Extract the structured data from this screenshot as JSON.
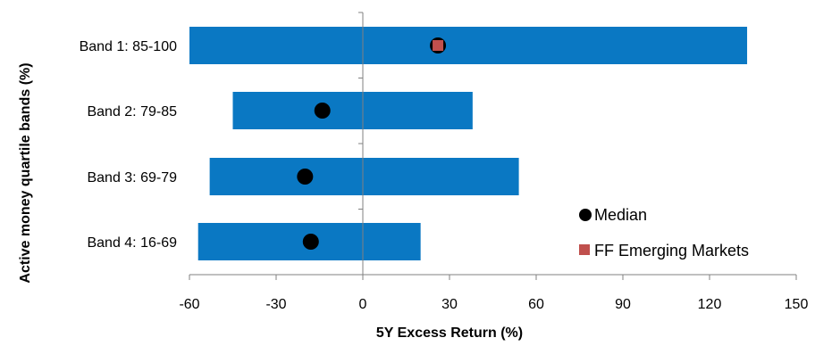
{
  "chart_data": {
    "type": "bar",
    "orientation": "horizontal",
    "subtype": "floating-range",
    "categories": [
      "Band 1: 85-100",
      "Band 2: 79-85",
      "Band 3: 69-79",
      "Band 4: 16-69"
    ],
    "ranges": [
      [
        -60,
        133
      ],
      [
        -45,
        38
      ],
      [
        -53,
        54
      ],
      [
        -57,
        20
      ]
    ],
    "series": [
      {
        "name": "Median",
        "marker": "circle",
        "values": [
          26,
          -14,
          -20,
          -18
        ]
      },
      {
        "name": "FF Emerging Markets",
        "marker": "square",
        "values": [
          26,
          null,
          null,
          null
        ]
      }
    ],
    "xlabel": "5Y Excess Return (%)",
    "ylabel": "Active money quartile bands (%)",
    "xlim": [
      -60,
      150
    ],
    "xticks": [
      -60,
      -30,
      0,
      30,
      60,
      90,
      120,
      150
    ],
    "xtick_labels": [
      "-60",
      "-30",
      "0",
      "30",
      "60",
      "90",
      "120",
      "150"
    ],
    "grid": false,
    "legend_position": "bottom-right",
    "colors": {
      "bar": "#0A78C3",
      "median": "#000000",
      "ff": "#C0504D",
      "axis": "#808080"
    }
  }
}
